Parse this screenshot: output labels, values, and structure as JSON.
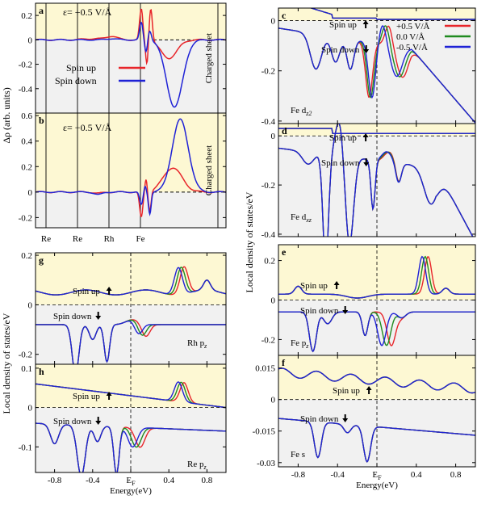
{
  "colors": {
    "spin_up_bg": "#fdf8d3",
    "spin_down_bg": "#f1f1f1",
    "red": "#e8252a",
    "green": "#1f8a1f",
    "blue": "#1f22d6",
    "plus05": "#e8252a",
    "zero": "#1f8a1f",
    "minus05": "#1f22d6"
  },
  "labels": {
    "ylabel_delta": "Δρ (arb. units)",
    "ylabel_ldos": "Local density of states/eV",
    "xlabel": "Energy(eV)",
    "ef": "E",
    "ef_sub": "F",
    "spin_up": "Spin up",
    "spin_down": "Spin down",
    "charged_sheet": "Charged sheet",
    "field_a": "+0.5 V/Å",
    "field_b": "−0.5 V/Å",
    "eps": "ε=",
    "legend_ab": [
      "Spin up",
      "Spin down"
    ],
    "legend_c": [
      "+0.5 V/Å",
      "0.0 V/Å",
      "-0.5 V/Å"
    ],
    "atoms": [
      "Re",
      "Re",
      "Rh",
      "Fe"
    ]
  },
  "chart_data": [
    {
      "panel": "a",
      "type": "line",
      "xlabel": "",
      "ylabel": "Δρ (arb. units)",
      "ylim": [
        -0.6,
        0.3
      ],
      "yticks": [
        "0.2",
        "0",
        "-0.2",
        "-0.4"
      ],
      "atom_ticks": [
        "Re",
        "Re",
        "Rh",
        "Fe"
      ],
      "annotation": "ε= +0.5 V/Å",
      "side_label": "Charged sheet",
      "series": [
        {
          "name": "Spin up",
          "color": "red",
          "peak": 0.27,
          "min": -0.15
        },
        {
          "name": "Spin down",
          "color": "blue",
          "peak": 0.14,
          "min": -0.54
        }
      ]
    },
    {
      "panel": "b",
      "type": "line",
      "xlabel": "",
      "ylabel": "Δρ (arb. units)",
      "ylim": [
        -0.28,
        0.62
      ],
      "yticks": [
        "0.6",
        "0.4",
        "0.2",
        "0",
        "-0.2"
      ],
      "atom_ticks": [
        "Re",
        "Re",
        "Rh",
        "Fe"
      ],
      "annotation": "ε= −0.5 V/Å",
      "side_label": "Charged sheet",
      "series": [
        {
          "name": "Spin up",
          "color": "red",
          "peak": 0.19,
          "min": -0.21
        },
        {
          "name": "Spin down",
          "color": "blue",
          "peak": 0.57,
          "min": -0.17
        }
      ]
    },
    {
      "panel": "c",
      "type": "line",
      "ylim": [
        -0.41,
        0.05
      ],
      "yticks": [
        "0",
        "-0.2",
        "-0.4"
      ],
      "xlim": [
        -1.0,
        1.0
      ],
      "orbital": "Fe d",
      "orbital_sub": "z2",
      "series": [
        {
          "name": "+0.5 V/Å"
        },
        {
          "name": "0.0 V/Å"
        },
        {
          "name": "-0.5 V/Å"
        }
      ]
    },
    {
      "panel": "d",
      "type": "line",
      "ylim": [
        -0.41,
        0.05
      ],
      "yticks": [
        "0",
        "-0.2",
        "-0.4"
      ],
      "xlim": [
        -1.0,
        1.0
      ],
      "orbital": "Fe d",
      "orbital_sub": "xz"
    },
    {
      "panel": "e",
      "type": "line",
      "ylim": [
        -0.28,
        0.28
      ],
      "yticks": [
        "0.2",
        "0",
        "-0.2"
      ],
      "xlim": [
        -1.0,
        1.0
      ],
      "orbital": "Fe p",
      "orbital_sub": "z"
    },
    {
      "panel": "f",
      "type": "line",
      "ylim": [
        -0.032,
        0.021
      ],
      "yticks": [
        "0.015",
        "0",
        "-0.015",
        "-0.03"
      ],
      "xlim": [
        -1.0,
        1.0
      ],
      "orbital": "Fe s",
      "orbital_sub": "",
      "xticks": [
        "-0.8",
        "-0.4",
        "E",
        "0.4",
        "0.8"
      ]
    },
    {
      "panel": "g",
      "type": "line",
      "ylim": [
        -0.24,
        0.21
      ],
      "yticks": [
        "0.2",
        "0",
        "-0.2"
      ],
      "xlim": [
        -1.0,
        1.0
      ],
      "orbital": "Rh p",
      "orbital_sub": "z"
    },
    {
      "panel": "h",
      "type": "line",
      "ylim": [
        -0.165,
        0.11
      ],
      "yticks": [
        "0.1",
        "0",
        "-0.1"
      ],
      "xlim": [
        -1.0,
        1.0
      ],
      "orbital": "Re p",
      "orbital_sub": "z",
      "xticks": [
        "-0.8",
        "-0.4",
        "E",
        "0.4",
        "0.8"
      ]
    }
  ]
}
